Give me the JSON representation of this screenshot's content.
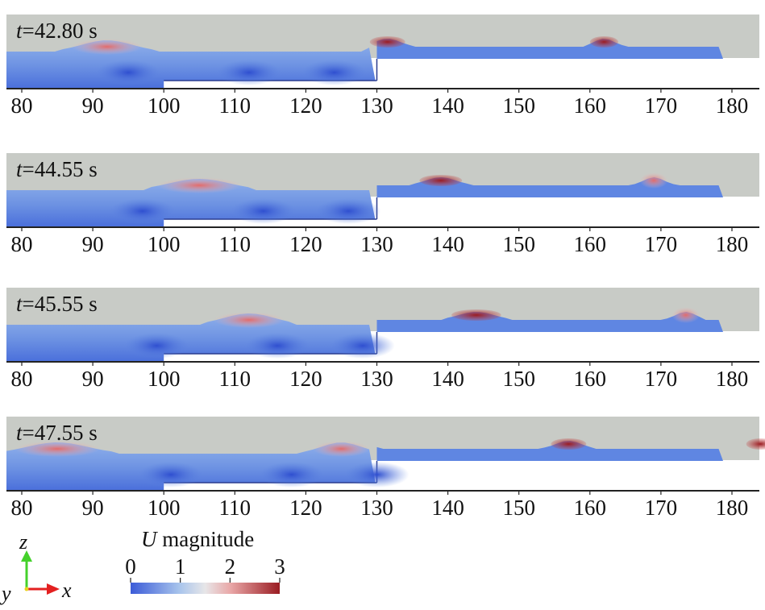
{
  "panels": [
    {
      "time_var": "t",
      "time_value": "=42.80 s"
    },
    {
      "time_var": "t",
      "time_value": "=44.55 s"
    },
    {
      "time_var": "t",
      "time_value": "=45.55 s"
    },
    {
      "time_var": "t",
      "time_value": "=47.55 s"
    }
  ],
  "x_ticks": [
    "80",
    "90",
    "100",
    "110",
    "120",
    "130",
    "140",
    "150",
    "160",
    "170",
    "180"
  ],
  "legend": {
    "title_var": "U",
    "title_rest": " magnitude",
    "ticks": [
      "0",
      "1",
      "2",
      "3"
    ],
    "min": 0,
    "max": 3
  },
  "axes_triad": {
    "z": "z",
    "y": "y",
    "x": "x"
  },
  "colors": {
    "air": "#c8cbc6",
    "low": "#3b5bd8",
    "mid": "#d9e4ee",
    "high": "#9a1c22",
    "z_arrow": "#44d12b",
    "x_arrow": "#e32020"
  }
}
